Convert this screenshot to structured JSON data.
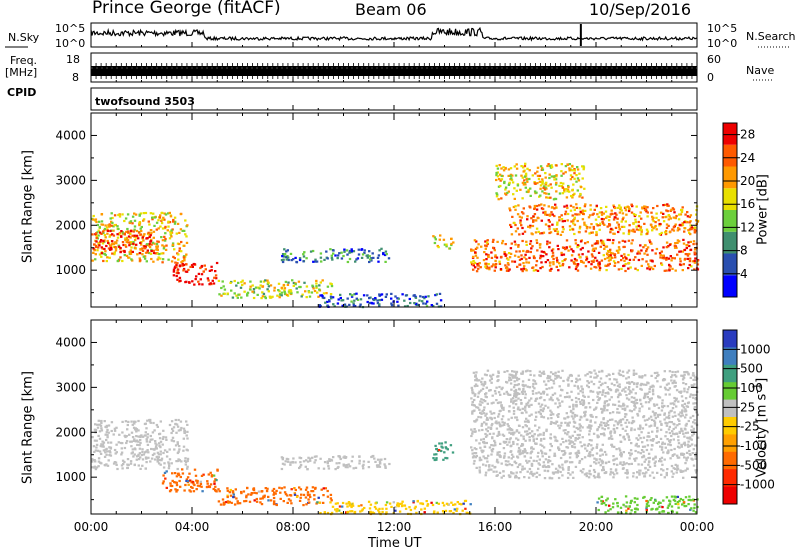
{
  "header": {
    "station": "Prince George (fitACF)",
    "beam": "Beam 06",
    "date": "10/Sep/2016"
  },
  "strip_panels": {
    "noise": {
      "left_label": "N.Sky",
      "right_label": "N.Search",
      "tick_top": "10^5",
      "tick_bottom": "10^0",
      "right_tick_top": "10^5",
      "right_tick_bottom": "10^0"
    },
    "freq": {
      "left_label_line1": "Freq.",
      "left_label_line2": "[MHz]",
      "tick_top": "18",
      "tick_bottom": "8",
      "right_label": "Nave",
      "right_tick_top": "60",
      "right_tick_bottom": "0"
    },
    "cpid": {
      "left_label": "CPID",
      "program": "twofsound 3503"
    }
  },
  "colors": {
    "power_scale": [
      "#0000ff",
      "#2a4fb0",
      "#3f8f6f",
      "#6ccf3c",
      "#e8e000",
      "#ff9900",
      "#ff5a00",
      "#ee0000"
    ],
    "velocity_scale": [
      "#2a3cbf",
      "#3f7fbf",
      "#3f9f7f",
      "#66cc33",
      "#c0c0c0",
      "#ffcc00",
      "#ffa000",
      "#ff6a00",
      "#ff2a00",
      "#ee0000"
    ],
    "ground_scatter": "#c0c0c0"
  },
  "chart_data": [
    {
      "type": "heatmap",
      "title": "",
      "xlabel": "",
      "ylabel": "Slant Range [km]",
      "xlim": [
        "00:00",
        "24:00"
      ],
      "ylim": [
        180,
        4500
      ],
      "x_ticks": [
        "00:00",
        "04:00",
        "08:00",
        "12:00",
        "16:00",
        "20:00",
        "00:00"
      ],
      "y_ticks": [
        1000,
        2000,
        3000,
        4000
      ],
      "colorbar": {
        "label": "Power [dB]",
        "ticks": [
          4,
          8,
          12,
          16,
          20,
          24,
          28
        ],
        "range": [
          0,
          30
        ]
      },
      "regions": [
        {
          "t_start": 0.0,
          "t_end": 3.8,
          "range_low": 1200,
          "range_high": 2300,
          "value_db": 18
        },
        {
          "t_start": 0.0,
          "t_end": 2.5,
          "range_low": 1400,
          "range_high": 1900,
          "value_db": 26
        },
        {
          "t_start": 3.2,
          "t_end": 5.0,
          "range_low": 700,
          "range_high": 1200,
          "value_db": 28
        },
        {
          "t_start": 5.0,
          "t_end": 9.5,
          "range_low": 400,
          "range_high": 800,
          "value_db": 16
        },
        {
          "t_start": 7.5,
          "t_end": 11.8,
          "range_low": 1200,
          "range_high": 1500,
          "value_db": 8
        },
        {
          "t_start": 9.0,
          "t_end": 14.0,
          "range_low": 200,
          "range_high": 500,
          "value_db": 6
        },
        {
          "t_start": 13.5,
          "t_end": 14.3,
          "range_low": 1500,
          "range_high": 1800,
          "value_db": 16
        },
        {
          "t_start": 15.0,
          "t_end": 24.0,
          "range_low": 1000,
          "range_high": 1700,
          "value_db": 24
        },
        {
          "t_start": 16.5,
          "t_end": 24.0,
          "range_low": 1800,
          "range_high": 2500,
          "value_db": 22
        },
        {
          "t_start": 16.0,
          "t_end": 19.5,
          "range_low": 2600,
          "range_high": 3400,
          "value_db": 18
        }
      ]
    },
    {
      "type": "heatmap",
      "title": "",
      "xlabel": "Time UT",
      "ylabel": "Slant Range [km]",
      "xlim": [
        "00:00",
        "24:00"
      ],
      "ylim": [
        180,
        4500
      ],
      "x_ticks": [
        "00:00",
        "04:00",
        "08:00",
        "12:00",
        "16:00",
        "20:00",
        "00:00"
      ],
      "y_ticks": [
        1000,
        2000,
        3000,
        4000
      ],
      "colorbar": {
        "label": "Velocity [m s^-1]",
        "ticks": [
          "1000",
          "500",
          "100",
          "25",
          "-25",
          "-100",
          "-500",
          "-1000"
        ]
      },
      "regions": [
        {
          "t_start": 0.0,
          "t_end": 3.8,
          "range_low": 1200,
          "range_high": 2300,
          "velocity": "ground scatter"
        },
        {
          "t_start": 2.8,
          "t_end": 5.0,
          "range_low": 700,
          "range_high": 1200,
          "velocity": -300
        },
        {
          "t_start": 5.0,
          "t_end": 9.5,
          "range_low": 400,
          "range_high": 800,
          "velocity": -400
        },
        {
          "t_start": 7.5,
          "t_end": 11.8,
          "range_low": 1200,
          "range_high": 1500,
          "velocity": "ground scatter"
        },
        {
          "t_start": 9.0,
          "t_end": 15.0,
          "range_low": 200,
          "range_high": 500,
          "velocity": -80
        },
        {
          "t_start": 13.5,
          "t_end": 14.3,
          "range_low": 1400,
          "range_high": 1800,
          "velocity": 150
        },
        {
          "t_start": 15.0,
          "t_end": 24.0,
          "range_low": 1000,
          "range_high": 3400,
          "velocity": "ground scatter"
        },
        {
          "t_start": 20.0,
          "t_end": 24.0,
          "range_low": 200,
          "range_high": 600,
          "velocity": 80
        }
      ]
    }
  ]
}
